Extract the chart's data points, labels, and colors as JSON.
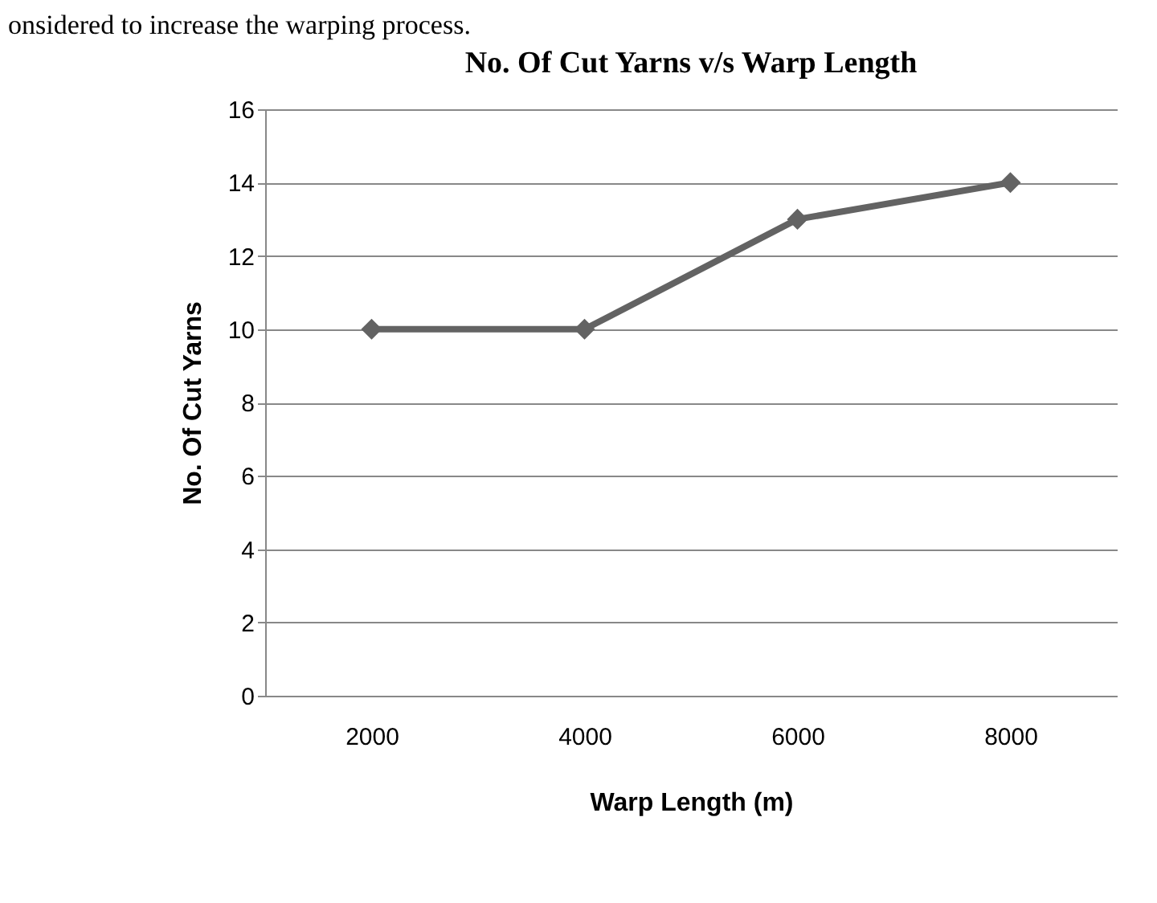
{
  "chart_data": {
    "type": "line",
    "title": "No. Of Cut Yarns v/s Warp Length",
    "xlabel": "Warp Length (m)",
    "ylabel": "No. Of Cut Yarns",
    "annotations": [
      "onsidered to increase the warping process."
    ],
    "categories": [
      "2000",
      "4000",
      "6000",
      "8000"
    ],
    "series": [
      {
        "color": "#636363",
        "values": [
          10,
          10,
          13,
          14
        ]
      }
    ],
    "ylim": [
      0,
      16
    ],
    "yticks": [
      0,
      2,
      4,
      6,
      8,
      10,
      12,
      14,
      16
    ],
    "grid": "y",
    "marker": "diamond",
    "line_style": "solid",
    "legend": false
  }
}
